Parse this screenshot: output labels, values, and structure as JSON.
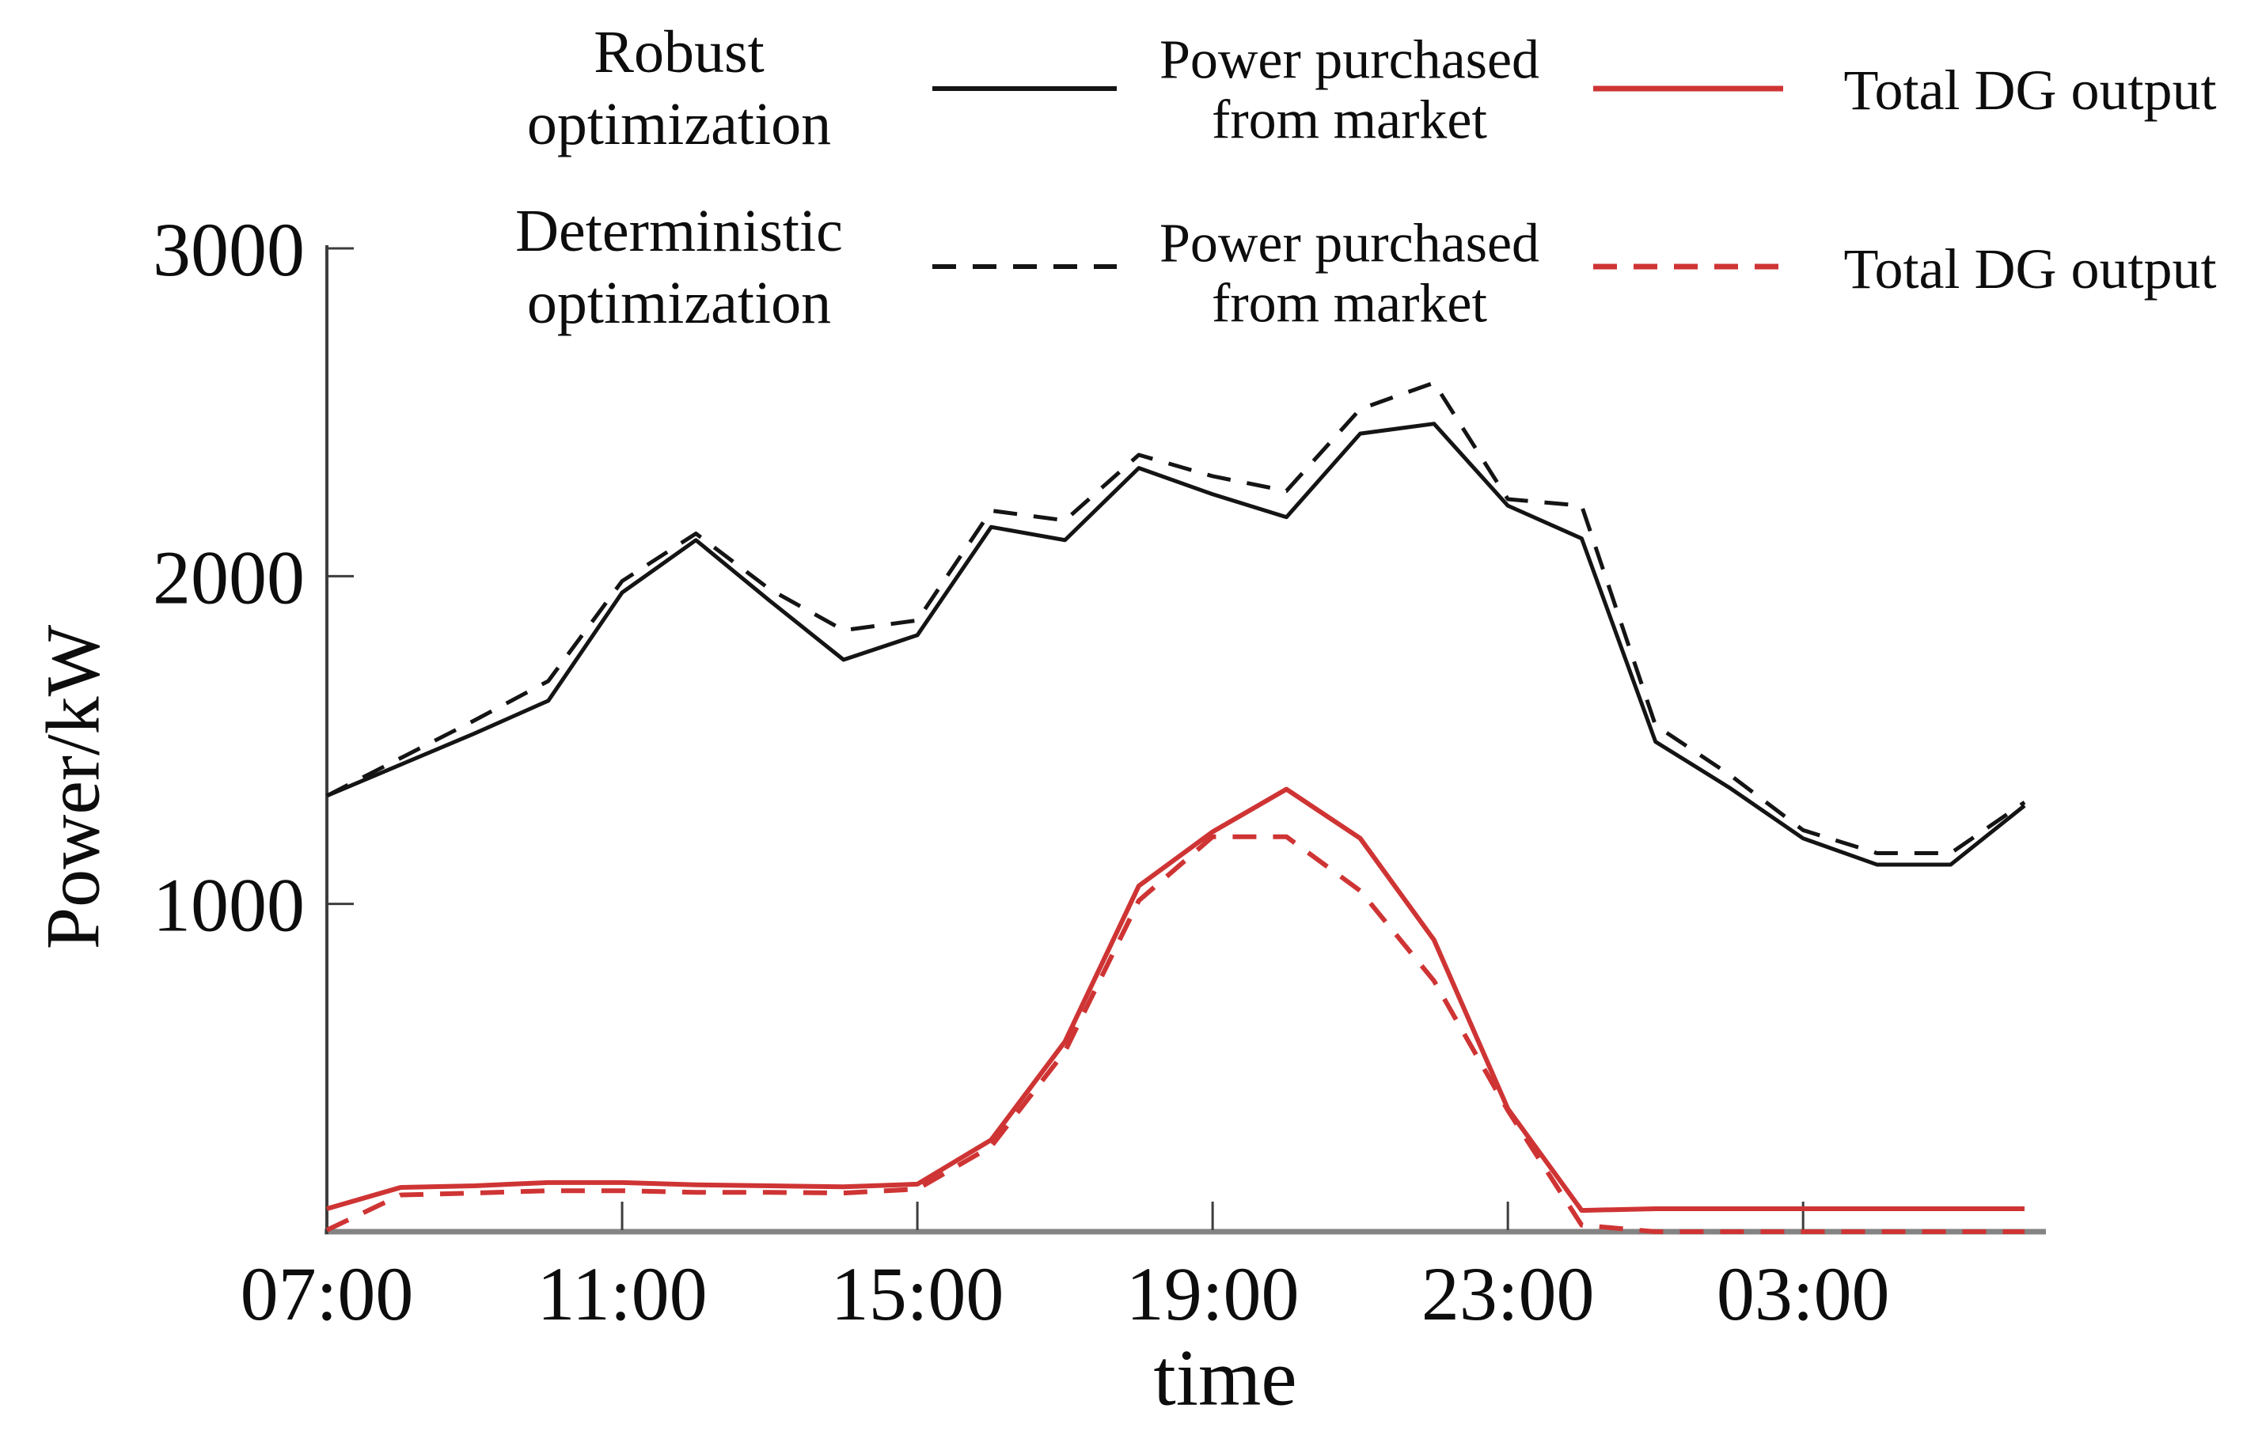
{
  "figure": {
    "background": "#ffffff",
    "axis_color": "#3d3d3d",
    "xaxis_line_color": "#848484",
    "black_series_color": "#141414",
    "red_series_color": "#cf3434"
  },
  "legend": {
    "rows": [
      {
        "group": "Robust\noptimization",
        "entries": [
          {
            "label": "Power purchased\nfrom market",
            "style": "solid",
            "color": "#141414"
          },
          {
            "label": "Total DG output",
            "style": "solid",
            "color": "#cf3434"
          }
        ]
      },
      {
        "group": "Deterministic\noptimization",
        "entries": [
          {
            "label": "Power purchased\nfrom market",
            "style": "dashed",
            "color": "#141414"
          },
          {
            "label": "Total DG output",
            "style": "dashed",
            "color": "#cf3434"
          }
        ]
      }
    ]
  },
  "chart_data": {
    "type": "line",
    "title": "",
    "xlabel": "time",
    "ylabel": "Power/kW",
    "grid": false,
    "legend_position": "top",
    "ylim": [
      0,
      3000
    ],
    "y_ticks": [
      "1000",
      "2000",
      "3000"
    ],
    "y_tick_values": [
      1000,
      2000,
      3000
    ],
    "x_tick_labels": [
      "07:00",
      "11:00",
      "15:00",
      "19:00",
      "23:00",
      "03:00"
    ],
    "x_tick_indices": [
      0,
      4,
      8,
      12,
      16,
      20
    ],
    "x": [
      "07:00",
      "08:00",
      "09:00",
      "10:00",
      "11:00",
      "12:00",
      "13:00",
      "14:00",
      "15:00",
      "16:00",
      "17:00",
      "18:00",
      "19:00",
      "20:00",
      "21:00",
      "22:00",
      "23:00",
      "00:00",
      "01:00",
      "02:00",
      "03:00",
      "04:00",
      "05:00",
      "06:00"
    ],
    "series": [
      {
        "key": "robust-purchased",
        "name": "Robust optimization - Power purchased from market",
        "color": "#141414",
        "dash": "solid",
        "width": 5,
        "values": [
          1330,
          1425,
          1520,
          1620,
          1950,
          2110,
          1925,
          1745,
          1820,
          2150,
          2110,
          2330,
          2250,
          2180,
          2435,
          2465,
          2215,
          2115,
          1495,
          1355,
          1200,
          1120,
          1120,
          1300
        ]
      },
      {
        "key": "deterministic-purchased",
        "name": "Deterministic optimization - Power purchased from market",
        "color": "#141414",
        "dash": "dashed",
        "width": 5,
        "values": [
          1330,
          1445,
          1560,
          1680,
          1985,
          2130,
          1960,
          1835,
          1865,
          2200,
          2170,
          2370,
          2305,
          2260,
          2510,
          2590,
          2235,
          2215,
          1545,
          1395,
          1225,
          1155,
          1155,
          1310
        ]
      },
      {
        "key": "robust-dg",
        "name": "Robust optimization - Total DG output",
        "color": "#cf3434",
        "dash": "solid",
        "width": 6,
        "values": [
          70,
          135,
          140,
          150,
          150,
          143,
          140,
          137,
          145,
          280,
          580,
          1055,
          1220,
          1350,
          1200,
          890,
          375,
          65,
          70,
          70,
          70,
          70,
          70,
          70
        ]
      },
      {
        "key": "deterministic-dg",
        "name": "Deterministic optimization - Total DG output",
        "color": "#cf3434",
        "dash": "dashed",
        "width": 6,
        "values": [
          5,
          112,
          118,
          125,
          125,
          120,
          120,
          118,
          130,
          260,
          550,
          1010,
          1205,
          1205,
          1040,
          765,
          370,
          20,
          0,
          0,
          0,
          0,
          0,
          0
        ]
      }
    ]
  }
}
